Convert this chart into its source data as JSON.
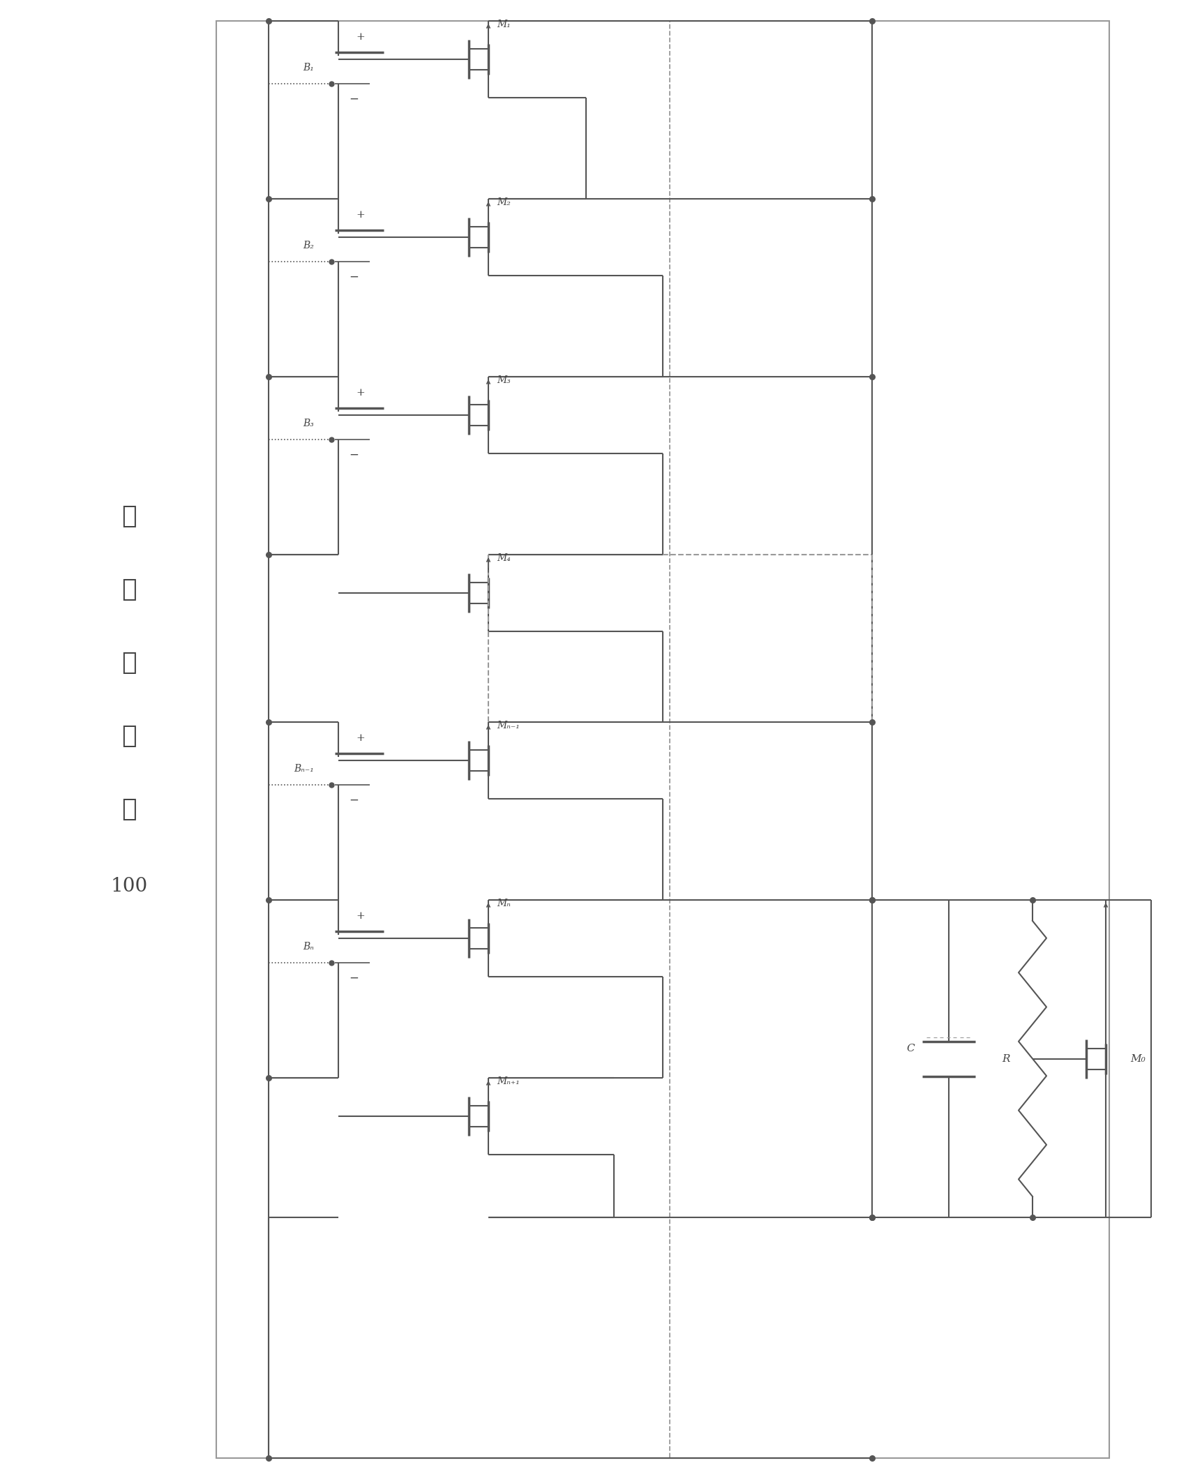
{
  "fig_width": 17.0,
  "fig_height": 21.2,
  "bg_color": "#ffffff",
  "lc": "#999999",
  "dc": "#555555",
  "tc": "#444444",
  "chinese_chars": [
    "均",
    "衡",
    "控",
    "制",
    "器"
  ],
  "num_label": "100",
  "batt_labels": [
    "B₁",
    "B₂",
    "B₃",
    "",
    "Bₙ₋₁",
    "Bₙ",
    ""
  ],
  "mosfet_labels": [
    "M₁",
    "M₂",
    "M₃",
    "M₄",
    "Mₙ₋₁",
    "Mₙ",
    "Mₙ₊₁"
  ],
  "cap_label": "C",
  "res_label": "R",
  "m0_label": "M₀",
  "has_battery": [
    true,
    true,
    true,
    false,
    true,
    true,
    false
  ],
  "section_heights": [
    2.55,
    2.55,
    2.55,
    2.4,
    2.55,
    2.55,
    2.0
  ]
}
